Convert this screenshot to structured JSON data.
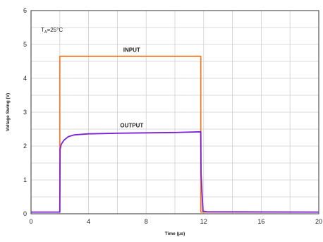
{
  "chart_data": {
    "type": "line",
    "title": "",
    "xlabel": "Time (µs)",
    "ylabel": "Voltage Swing (V)",
    "xlim": [
      0,
      20
    ],
    "ylim": [
      0,
      6
    ],
    "xticks": [
      "0",
      "4",
      "8",
      "12",
      "16",
      "20"
    ],
    "yticks": [
      "0",
      "1",
      "2",
      "3",
      "4",
      "5",
      "6"
    ],
    "grid": true,
    "condition": {
      "symbol": "T",
      "subscript": "A",
      "value": "=25°C"
    },
    "annotations": [
      {
        "text": "INPUT",
        "x": 7,
        "y": 4.78
      },
      {
        "text": "OUTPUT",
        "x": 7,
        "y": 2.55
      }
    ],
    "series": [
      {
        "name": "INPUT",
        "color": "#f07d2e",
        "x": [
          0,
          2,
          2,
          11.8,
          11.8,
          20
        ],
        "y": [
          0.05,
          0.05,
          4.65,
          4.65,
          0.05,
          0.05
        ]
      },
      {
        "name": "OUTPUT",
        "color": "#7a22d8",
        "x": [
          0,
          2.0,
          2.02,
          2.1,
          2.3,
          2.6,
          3.0,
          4.0,
          6.0,
          8.0,
          10.0,
          11.8,
          11.82,
          11.95,
          12.2,
          20
        ],
        "y": [
          0.05,
          0.05,
          1.9,
          2.05,
          2.18,
          2.28,
          2.33,
          2.36,
          2.38,
          2.39,
          2.4,
          2.42,
          1.2,
          0.08,
          0.06,
          0.05
        ]
      }
    ]
  }
}
